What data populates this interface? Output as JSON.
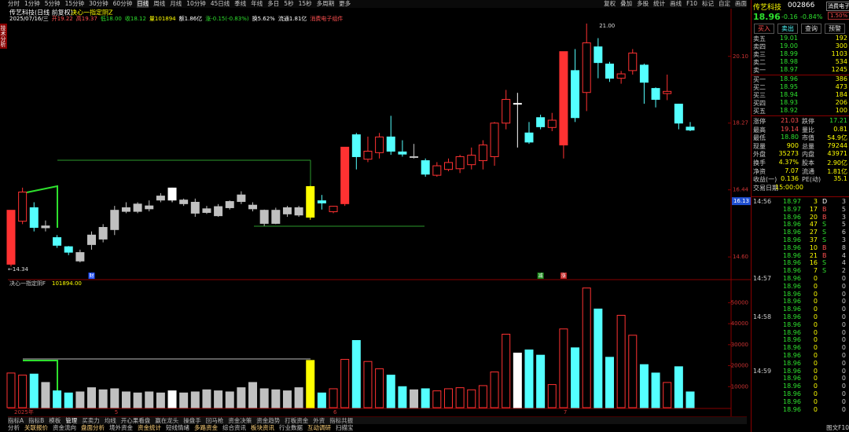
{
  "toolbar": {
    "periods": [
      "分时",
      "1分钟",
      "5分钟",
      "15分钟",
      "30分钟",
      "60分钟",
      "日线",
      "周线",
      "月线",
      "10分钟",
      "45日线",
      "季线",
      "年线",
      "多日",
      "5秒",
      "15秒",
      "多周期",
      "更多"
    ],
    "tools": [
      "复权",
      "叠加",
      "多股",
      "统计",
      "画线",
      "F10",
      "标记",
      "自定",
      "画面"
    ]
  },
  "side_tabs": [
    "技术分析"
  ],
  "chart": {
    "title": "传艺科技(日线 前复权)",
    "indicator": "决心一指定阴Z",
    "info": [
      "2025/07/16/三",
      "开19.22",
      "高19.37",
      "低18.00",
      "收18.12",
      "量101894",
      "额1.86亿",
      "涨-0.15(-0.83%)",
      "换5.62%",
      "流通1.81亿",
      "消费电子组件"
    ],
    "ylim": [
      14.0,
      21.15
    ],
    "yticks": [
      {
        "value": 20.1,
        "label": "20.10"
      },
      18.27,
      16.44,
      {
        "value": 14.6,
        "label": "14.60"
      }
    ],
    "high_label": "21.00",
    "low_label": "←14.34",
    "cursor_price": 16.13,
    "markers": [
      "财",
      "减",
      "涨"
    ],
    "months": [
      "2025年",
      "5",
      "6",
      "7"
    ],
    "candles": [
      {
        "o": 14.4,
        "h": 15.88,
        "l": 14.34,
        "c": 15.88,
        "v": 16500,
        "color": "#ff3232"
      },
      {
        "o": 15.58,
        "h": 16.5,
        "l": 15.5,
        "c": 16.38,
        "v": 15500,
        "color": "#ff3232",
        "hollow": true
      },
      {
        "o": 15.95,
        "h": 16.1,
        "l": 15.3,
        "c": 15.41,
        "v": 16000,
        "color": "#54ffff"
      },
      {
        "o": 15.45,
        "h": 15.6,
        "l": 15.3,
        "c": 15.4,
        "v": 12000,
        "color": "#c0c0c0"
      },
      {
        "o": 15.13,
        "h": 15.2,
        "l": 14.85,
        "c": 14.92,
        "v": 8000,
        "color": "#54ffff"
      },
      {
        "o": 14.88,
        "h": 14.9,
        "l": 14.65,
        "c": 14.73,
        "v": 7000,
        "color": "#54ffff"
      },
      {
        "o": 14.72,
        "h": 14.8,
        "l": 14.45,
        "c": 14.49,
        "v": 7500,
        "color": "#c0c0c0"
      },
      {
        "o": 14.94,
        "h": 15.3,
        "l": 14.8,
        "c": 15.2,
        "v": 9500,
        "color": "#c0c0c0"
      },
      {
        "o": 15.09,
        "h": 15.5,
        "l": 15.0,
        "c": 15.41,
        "v": 8500,
        "color": "#c0c0c0"
      },
      {
        "o": 15.35,
        "h": 16.0,
        "l": 15.2,
        "c": 15.88,
        "v": 9000,
        "color": "#c0c0c0"
      },
      {
        "o": 15.95,
        "h": 16.1,
        "l": 15.8,
        "c": 15.85,
        "v": 7500,
        "color": "#c0c0c0"
      },
      {
        "o": 15.85,
        "h": 16.1,
        "l": 15.8,
        "c": 16.05,
        "v": 7000,
        "color": "#c0c0c0"
      },
      {
        "o": 16.0,
        "h": 16.15,
        "l": 15.85,
        "c": 15.92,
        "v": 7500,
        "color": "#c0c0c0"
      },
      {
        "o": 16.16,
        "h": 16.35,
        "l": 16.1,
        "c": 16.27,
        "v": 7000,
        "color": "#c0c0c0"
      },
      {
        "o": 16.16,
        "h": 16.5,
        "l": 16.1,
        "c": 16.49,
        "v": 8000,
        "color": "#ffffff"
      },
      {
        "o": 16.16,
        "h": 16.2,
        "l": 16.0,
        "c": 16.06,
        "v": 7000,
        "color": "#c0c0c0"
      },
      {
        "o": 16.1,
        "h": 16.2,
        "l": 15.7,
        "c": 15.8,
        "v": 7500,
        "color": "#c0c0c0"
      },
      {
        "o": 15.82,
        "h": 16.0,
        "l": 15.78,
        "c": 15.92,
        "v": 8500,
        "color": "#c0c0c0"
      },
      {
        "o": 15.73,
        "h": 16.05,
        "l": 15.7,
        "c": 15.98,
        "v": 8000,
        "color": "#c0c0c0"
      },
      {
        "o": 15.95,
        "h": 16.15,
        "l": 15.9,
        "c": 16.12,
        "v": 7500,
        "color": "#c0c0c0"
      },
      {
        "o": 16.12,
        "h": 16.4,
        "l": 16.05,
        "c": 16.3,
        "v": 9500,
        "color": "#c0c0c0"
      },
      {
        "o": 16.02,
        "h": 16.1,
        "l": 15.85,
        "c": 15.92,
        "v": 12000,
        "color": "#c0c0c0"
      },
      {
        "o": 15.88,
        "h": 15.9,
        "l": 15.45,
        "c": 15.52,
        "v": 9000,
        "color": "#c0c0c0"
      },
      {
        "o": 15.52,
        "h": 15.95,
        "l": 15.5,
        "c": 15.88,
        "v": 8500,
        "color": "#c0c0c0"
      },
      {
        "o": 15.78,
        "h": 16.0,
        "l": 15.7,
        "c": 15.95,
        "v": 8000,
        "color": "#c0c0c0"
      },
      {
        "o": 15.95,
        "h": 16.0,
        "l": 15.7,
        "c": 15.75,
        "v": 9500,
        "color": "#c0c0c0"
      },
      {
        "o": 15.69,
        "h": 16.55,
        "l": 15.62,
        "c": 16.53,
        "v": 22500,
        "color": "#ffff00"
      },
      {
        "o": 16.14,
        "h": 16.3,
        "l": 15.9,
        "c": 16.08,
        "v": 7000,
        "color": "#54ffff"
      },
      {
        "o": 15.84,
        "h": 16.0,
        "l": 15.8,
        "c": 15.99,
        "v": 9000,
        "color": "#ff3232",
        "hollow": true
      },
      {
        "o": 16.06,
        "h": 17.61,
        "l": 16.0,
        "c": 17.61,
        "v": 23000,
        "color": "#ff3232"
      },
      {
        "o": 17.95,
        "h": 18.0,
        "l": 17.0,
        "c": 17.35,
        "v": 32000,
        "color": "#54ffff"
      },
      {
        "o": 17.28,
        "h": 17.9,
        "l": 17.2,
        "c": 17.5,
        "v": 22000,
        "color": "#ff3232",
        "hollow": true
      },
      {
        "o": 17.46,
        "h": 18.0,
        "l": 17.3,
        "c": 17.89,
        "v": 18500,
        "color": "#ff3232",
        "hollow": true
      },
      {
        "o": 17.89,
        "h": 18.47,
        "l": 17.4,
        "c": 17.5,
        "v": 15500,
        "color": "#54ffff"
      },
      {
        "o": 17.48,
        "h": 17.8,
        "l": 17.35,
        "c": 17.42,
        "v": 10000,
        "color": "#54ffff"
      },
      {
        "o": 17.35,
        "h": 17.7,
        "l": 17.3,
        "c": 17.33,
        "v": 8500,
        "color": "#c0c0c0"
      },
      {
        "o": 17.24,
        "h": 17.3,
        "l": 16.8,
        "c": 16.87,
        "v": 9000,
        "color": "#54ffff"
      },
      {
        "o": 16.84,
        "h": 17.2,
        "l": 16.8,
        "c": 17.1,
        "v": 8000,
        "color": "#ff3232",
        "hollow": true
      },
      {
        "o": 17.0,
        "h": 17.3,
        "l": 16.95,
        "c": 17.19,
        "v": 9000,
        "color": "#ff3232",
        "hollow": true
      },
      {
        "o": 17.02,
        "h": 17.4,
        "l": 16.9,
        "c": 17.35,
        "v": 9500,
        "color": "#ff3232",
        "hollow": true
      },
      {
        "o": 17.13,
        "h": 17.6,
        "l": 17.0,
        "c": 17.39,
        "v": 8500,
        "color": "#ff3232",
        "hollow": true
      },
      {
        "o": 17.24,
        "h": 17.8,
        "l": 17.0,
        "c": 17.67,
        "v": 10500,
        "color": "#ff3232",
        "hollow": true
      },
      {
        "o": 17.35,
        "h": 18.3,
        "l": 17.1,
        "c": 18.27,
        "v": 17000,
        "color": "#ff3232",
        "hollow": true
      },
      {
        "o": 18.27,
        "h": 19.18,
        "l": 18.1,
        "c": 18.92,
        "v": 35000,
        "color": "#ff3232",
        "hollow": true
      },
      {
        "o": 18.79,
        "h": 19.1,
        "l": 17.6,
        "c": 18.81,
        "v": 26000,
        "color": "#ffffff"
      },
      {
        "o": 18.0,
        "h": 18.3,
        "l": 17.7,
        "c": 17.75,
        "v": 27500,
        "color": "#54ffff"
      },
      {
        "o": 18.42,
        "h": 18.5,
        "l": 18.1,
        "c": 18.17,
        "v": 25000,
        "color": "#54ffff"
      },
      {
        "o": 18.15,
        "h": 18.55,
        "l": 18.05,
        "c": 18.35,
        "v": 11000,
        "color": "#ff3232",
        "hollow": true
      },
      {
        "o": 17.67,
        "h": 20.23,
        "l": 17.3,
        "c": 20.23,
        "v": 37500,
        "color": "#ff3232"
      },
      {
        "o": 19.71,
        "h": 20.3,
        "l": 18.3,
        "c": 18.42,
        "v": 28500,
        "color": "#54ffff"
      },
      {
        "o": 19.11,
        "h": 21.0,
        "l": 18.6,
        "c": 20.47,
        "v": 57000,
        "color": "#ff3232",
        "hollow": true
      },
      {
        "o": 20.36,
        "h": 20.6,
        "l": 19.5,
        "c": 19.93,
        "v": 47000,
        "color": "#54ffff"
      },
      {
        "o": 19.89,
        "h": 19.95,
        "l": 19.4,
        "c": 19.5,
        "v": 24000,
        "color": "#54ffff"
      },
      {
        "o": 19.5,
        "h": 19.7,
        "l": 19.35,
        "c": 19.62,
        "v": 44000,
        "color": "#ff3232",
        "hollow": true
      },
      {
        "o": 19.71,
        "h": 20.3,
        "l": 19.6,
        "c": 20.19,
        "v": 34500,
        "color": "#ff3232",
        "hollow": true
      },
      {
        "o": 19.86,
        "h": 19.9,
        "l": 18.8,
        "c": 19.39,
        "v": 20500,
        "color": "#54ffff"
      },
      {
        "o": 19.22,
        "h": 19.25,
        "l": 18.7,
        "c": 18.92,
        "v": 16500,
        "color": "#54ffff"
      },
      {
        "o": 19.08,
        "h": 19.6,
        "l": 18.9,
        "c": 19.14,
        "v": 12000,
        "color": "#ff3232",
        "hollow": true
      },
      {
        "o": 18.79,
        "h": 18.8,
        "l": 18.1,
        "c": 18.27,
        "v": 19500,
        "color": "#54ffff"
      },
      {
        "o": 18.16,
        "h": 18.3,
        "l": 18.05,
        "c": 18.08,
        "v": 7500,
        "color": "#54ffff"
      }
    ],
    "volume": {
      "title": "决心一指定阴F",
      "value": "101894.00",
      "ylim": [
        0,
        58000
      ],
      "yticks": [
        10000,
        20000,
        30000,
        40000,
        50000
      ]
    }
  },
  "quote": {
    "name": "传艺科技",
    "code": "002866",
    "tag": "消费电子",
    "price": "18.96",
    "change": "-0.16",
    "pct": "-0.84%",
    "rank": "1.50%",
    "buttons": [
      "买入",
      "卖出",
      "查询",
      "预警"
    ],
    "book": [
      [
        "卖五",
        "19.01",
        "192"
      ],
      [
        "卖四",
        "19.00",
        "300"
      ],
      [
        "卖三",
        "18.99",
        "1103"
      ],
      [
        "卖二",
        "18.98",
        "534"
      ],
      [
        "卖一",
        "18.97",
        "1245"
      ],
      [
        "买一",
        "18.96",
        "386"
      ],
      [
        "买二",
        "18.95",
        "473"
      ],
      [
        "买三",
        "18.94",
        "184"
      ],
      [
        "买四",
        "18.93",
        "206"
      ],
      [
        "买五",
        "18.92",
        "100"
      ]
    ],
    "stats": [
      [
        "涨停",
        "21.03",
        "跌停",
        "17.21"
      ],
      [
        "最高",
        "19.14",
        "量比",
        "0.81"
      ],
      [
        "最低",
        "18.80",
        "市值",
        "54.9亿"
      ],
      [
        "现量",
        "900",
        "总量",
        "79244"
      ],
      [
        "外盘",
        "35273",
        "内盘",
        "43971"
      ],
      [
        "换手",
        "4.37%",
        "股本",
        "2.90亿"
      ],
      [
        "净资",
        "7.07",
        "流通",
        "1.81亿"
      ],
      [
        "收益(一)",
        "0.136",
        "PE(动)",
        "35.1"
      ],
      [
        "交易日期",
        "15:00:00"
      ]
    ],
    "ticks": [
      {
        "time": "14:56",
        "price": "18.97",
        "vol": "3",
        "side": "D",
        "n": "3"
      },
      {
        "price": "18.97",
        "vol": "17",
        "side": "B",
        "n": "5"
      },
      {
        "price": "18.96",
        "vol": "20",
        "side": "B",
        "n": "3"
      },
      {
        "price": "18.96",
        "vol": "47",
        "side": "S",
        "n": "5"
      },
      {
        "price": "18.96",
        "vol": "27",
        "side": "S",
        "n": "6"
      },
      {
        "price": "18.96",
        "vol": "37",
        "side": "S",
        "n": "3"
      },
      {
        "price": "18.96",
        "vol": "10",
        "side": "B",
        "n": "8"
      },
      {
        "price": "18.96",
        "vol": "21",
        "side": "B",
        "n": "4"
      },
      {
        "price": "18.96",
        "vol": "16",
        "side": "S",
        "n": "4"
      },
      {
        "price": "18.96",
        "vol": "7",
        "side": "S",
        "n": "2"
      },
      {
        "time": "14:57",
        "price": "18.96",
        "vol": "0",
        "n": "0"
      },
      {
        "price": "18.96",
        "vol": "0",
        "n": "0"
      },
      {
        "price": "18.96",
        "vol": "0",
        "n": "0"
      },
      {
        "price": "18.96",
        "vol": "0",
        "n": "0"
      },
      {
        "price": "18.96",
        "vol": "0",
        "n": "0"
      },
      {
        "time": "14:58",
        "price": "18.96",
        "vol": "0",
        "n": "0"
      },
      {
        "price": "18.96",
        "vol": "0",
        "n": "0"
      },
      {
        "price": "18.96",
        "vol": "0",
        "n": "0"
      },
      {
        "price": "18.96",
        "vol": "0",
        "n": "0"
      },
      {
        "price": "18.96",
        "vol": "0",
        "n": "0"
      },
      {
        "price": "18.96",
        "vol": "0",
        "n": "0"
      },
      {
        "price": "18.96",
        "vol": "0",
        "n": "0"
      },
      {
        "time": "14:59",
        "price": "18.96",
        "vol": "0",
        "n": "0"
      },
      {
        "price": "18.96",
        "vol": "0",
        "n": "0"
      },
      {
        "price": "18.96",
        "vol": "0",
        "n": "0"
      },
      {
        "price": "18.96",
        "vol": "0",
        "n": "0"
      },
      {
        "price": "18.96",
        "vol": "0",
        "n": "0"
      },
      {
        "price": "18.96",
        "vol": "0",
        "n": "0"
      }
    ]
  },
  "bottom_tabs": [
    "指标A",
    "指标B",
    "模板",
    "管理",
    "买卖力",
    "均线",
    "开心果看盘",
    "赢在龙头",
    "操盘手",
    "回马枪",
    "资金决策",
    "资金趋势",
    "打板资金",
    "外资",
    "指标共振"
  ],
  "bottom_links": [
    "分析",
    "关联报价",
    "资金流向",
    "盘面分析",
    "境外资金",
    "资金统计",
    "短线情绪",
    "多路资金",
    "综合资讯",
    "板块资讯",
    "行业数据",
    "互动调研",
    "扫描宝"
  ],
  "status": "图文F10"
}
